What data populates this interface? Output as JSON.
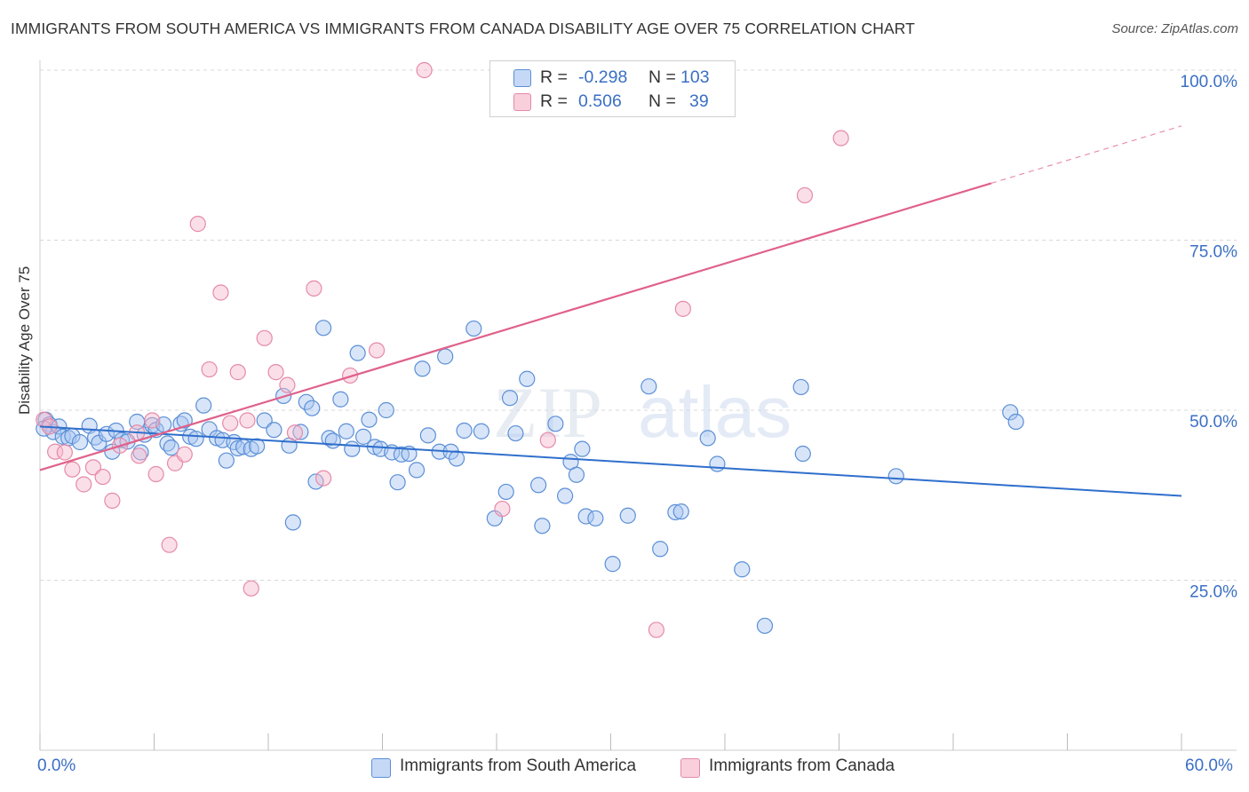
{
  "title": "IMMIGRANTS FROM SOUTH AMERICA VS IMMIGRANTS FROM CANADA DISABILITY AGE OVER 75 CORRELATION CHART",
  "source": "Source: ZipAtlas.com",
  "legend": {
    "rows": [
      {
        "r_label": "R =",
        "r_value": "-0.298",
        "n_label": "N =",
        "n_value": "103",
        "color": "#a9c6f2"
      },
      {
        "r_label": "R =",
        "r_value": "0.506",
        "n_label": "N =",
        "n_value": "39",
        "color": "#f7b8cc"
      }
    ]
  },
  "bottom_legend": {
    "series1": "Immigrants from South America",
    "series2": "Immigrants from Canada"
  },
  "x_axis": {
    "min_label": "0.0%",
    "max_label": "60.0%"
  },
  "colors": {
    "blue_fill": "#a9c6f2",
    "blue_stroke": "#5b8fd6",
    "blue_line": "#2f6fcc",
    "pink_fill": "#f7b8cc",
    "pink_stroke": "#e58aa8",
    "pink_line": "#e0618a",
    "tick_text": "#3a6fc4",
    "grid": "#d8d8d8"
  },
  "chart_data": {
    "type": "scatter",
    "title": "IMMIGRANTS FROM SOUTH AMERICA VS IMMIGRANTS FROM CANADA DISABILITY AGE OVER 75 CORRELATION CHART",
    "xlabel": "",
    "ylabel": "Disability Age Over 75",
    "xlim": [
      0,
      60
    ],
    "ylim": [
      0,
      100
    ],
    "y_ticks": [
      25,
      50,
      75,
      100
    ],
    "y_tick_labels": [
      "25.0%",
      "50.0%",
      "75.0%",
      "100.0%"
    ],
    "x_tick_labels": [
      "0.0%",
      "60.0%"
    ],
    "grid": true,
    "watermark": "ZIPatlas",
    "series": [
      {
        "name": "Immigrants from South America",
        "R": -0.298,
        "N": 103,
        "trend": {
          "x0": 0,
          "y0": 47.6,
          "x1": 60,
          "y1": 37.4,
          "dashed_from": null
        },
        "points": [
          [
            0.3,
            48.6
          ],
          [
            0.5,
            47.9
          ],
          [
            0.7,
            46.8
          ],
          [
            1.0,
            47.6
          ],
          [
            1.2,
            46.1
          ],
          [
            1.5,
            45.9
          ],
          [
            1.7,
            46.2
          ],
          [
            2.1,
            45.3
          ],
          [
            2.6,
            47.7
          ],
          [
            2.9,
            46.0
          ],
          [
            3.1,
            45.2
          ],
          [
            3.5,
            46.5
          ],
          [
            3.8,
            43.9
          ],
          [
            4.0,
            47.0
          ],
          [
            4.3,
            45.6
          ],
          [
            4.6,
            45.4
          ],
          [
            5.1,
            48.3
          ],
          [
            5.3,
            43.8
          ],
          [
            5.5,
            46.4
          ],
          [
            5.9,
            47.8
          ],
          [
            6.1,
            47.1
          ],
          [
            6.5,
            47.9
          ],
          [
            6.7,
            45.1
          ],
          [
            6.9,
            44.5
          ],
          [
            7.4,
            48.0
          ],
          [
            7.6,
            48.5
          ],
          [
            7.9,
            46.1
          ],
          [
            8.2,
            45.8
          ],
          [
            8.6,
            50.7
          ],
          [
            8.9,
            47.2
          ],
          [
            9.3,
            45.9
          ],
          [
            9.6,
            45.6
          ],
          [
            9.8,
            42.6
          ],
          [
            10.2,
            45.3
          ],
          [
            10.4,
            44.4
          ],
          [
            10.7,
            44.6
          ],
          [
            11.1,
            44.3
          ],
          [
            11.4,
            44.7
          ],
          [
            11.8,
            48.5
          ],
          [
            12.3,
            47.1
          ],
          [
            12.8,
            52.1
          ],
          [
            13.1,
            44.8
          ],
          [
            13.3,
            33.5
          ],
          [
            13.7,
            46.8
          ],
          [
            14.0,
            51.2
          ],
          [
            14.3,
            50.3
          ],
          [
            14.5,
            39.5
          ],
          [
            14.9,
            62.1
          ],
          [
            15.2,
            45.9
          ],
          [
            15.4,
            45.5
          ],
          [
            15.8,
            51.6
          ],
          [
            16.1,
            46.9
          ],
          [
            16.4,
            44.3
          ],
          [
            16.7,
            58.4
          ],
          [
            17.0,
            46.1
          ],
          [
            17.3,
            48.6
          ],
          [
            17.6,
            44.6
          ],
          [
            17.9,
            44.3
          ],
          [
            18.2,
            50.0
          ],
          [
            18.5,
            43.8
          ],
          [
            18.8,
            39.4
          ],
          [
            19.0,
            43.5
          ],
          [
            19.4,
            43.6
          ],
          [
            19.8,
            41.2
          ],
          [
            20.1,
            56.1
          ],
          [
            20.4,
            46.3
          ],
          [
            21.0,
            43.9
          ],
          [
            21.3,
            57.9
          ],
          [
            21.6,
            43.9
          ],
          [
            21.9,
            42.9
          ],
          [
            22.3,
            47.0
          ],
          [
            22.8,
            62.0
          ],
          [
            23.2,
            46.9
          ],
          [
            23.9,
            34.1
          ],
          [
            24.5,
            38.0
          ],
          [
            24.7,
            51.8
          ],
          [
            25.0,
            46.6
          ],
          [
            25.6,
            54.6
          ],
          [
            26.2,
            39.0
          ],
          [
            26.4,
            33.0
          ],
          [
            27.1,
            48.0
          ],
          [
            27.6,
            37.4
          ],
          [
            27.9,
            42.4
          ],
          [
            28.2,
            40.5
          ],
          [
            28.5,
            44.3
          ],
          [
            28.7,
            34.4
          ],
          [
            29.2,
            34.1
          ],
          [
            30.1,
            27.4
          ],
          [
            30.9,
            34.5
          ],
          [
            32.0,
            53.5
          ],
          [
            32.6,
            29.6
          ],
          [
            33.4,
            35.0
          ],
          [
            33.7,
            35.1
          ],
          [
            35.1,
            45.9
          ],
          [
            35.6,
            42.1
          ],
          [
            36.9,
            26.6
          ],
          [
            38.1,
            18.3
          ],
          [
            40.0,
            53.4
          ],
          [
            40.1,
            43.6
          ],
          [
            45.0,
            40.3
          ],
          [
            51.0,
            49.7
          ],
          [
            51.3,
            48.3
          ],
          [
            0.2,
            47.3
          ]
        ]
      },
      {
        "name": "Immigrants from Canada",
        "R": 0.506,
        "N": 39,
        "trend": {
          "x0": 0,
          "y0": 41.2,
          "x1": 60,
          "y1": 91.8,
          "dashed_from": 50
        },
        "points": [
          [
            0.2,
            48.6
          ],
          [
            0.5,
            47.6
          ],
          [
            0.8,
            43.9
          ],
          [
            1.3,
            43.8
          ],
          [
            1.7,
            41.3
          ],
          [
            2.3,
            39.1
          ],
          [
            2.8,
            41.6
          ],
          [
            3.3,
            40.2
          ],
          [
            3.8,
            36.7
          ],
          [
            4.2,
            44.8
          ],
          [
            5.1,
            46.7
          ],
          [
            5.2,
            43.3
          ],
          [
            5.9,
            48.5
          ],
          [
            6.1,
            40.6
          ],
          [
            6.8,
            30.2
          ],
          [
            7.1,
            42.2
          ],
          [
            7.6,
            43.5
          ],
          [
            8.3,
            77.4
          ],
          [
            8.9,
            56.0
          ],
          [
            9.5,
            67.3
          ],
          [
            10.0,
            48.1
          ],
          [
            10.4,
            55.6
          ],
          [
            10.9,
            48.5
          ],
          [
            11.1,
            23.8
          ],
          [
            11.8,
            60.6
          ],
          [
            12.4,
            55.6
          ],
          [
            13.0,
            53.7
          ],
          [
            13.4,
            46.7
          ],
          [
            14.4,
            67.9
          ],
          [
            14.9,
            40.0
          ],
          [
            16.3,
            55.1
          ],
          [
            17.7,
            58.8
          ],
          [
            20.2,
            100.0
          ],
          [
            24.3,
            35.5
          ],
          [
            26.7,
            45.6
          ],
          [
            32.4,
            17.7
          ],
          [
            33.8,
            64.9
          ],
          [
            40.2,
            81.6
          ],
          [
            42.1,
            90.0
          ]
        ]
      }
    ]
  }
}
